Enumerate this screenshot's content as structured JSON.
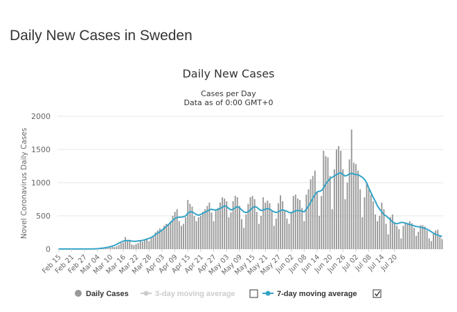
{
  "page": {
    "heading": "Daily New Cases in Sweden"
  },
  "colors": {
    "bar": "#999999",
    "line": "#33a3c7",
    "grid": "#e6e6e6",
    "text": "#333333",
    "disabled": "#cccccc"
  },
  "chart_data": {
    "type": "bar",
    "title": "Daily New Cases",
    "subtitle_line1": "Cases per Day",
    "subtitle_line2": "Data as of 0:00 GMT+0",
    "ylabel": "Novel Coronavirus Daily Cases",
    "ylim": [
      0,
      2000
    ],
    "yticks": [
      "0",
      "500",
      "1000",
      "1500",
      "2000"
    ],
    "ytick_values": [
      0,
      500,
      1000,
      1500,
      2000
    ],
    "start_date": "Feb 15",
    "xtick_labels": [
      "Feb 15",
      "Feb 21",
      "Feb 27",
      "Mar 04",
      "Mar 10",
      "Mar 16",
      "Mar 22",
      "Mar 28",
      "Apr 03",
      "Apr 09",
      "Apr 15",
      "Apr 21",
      "Apr 27",
      "May 03",
      "May 09",
      "May 15",
      "May 21",
      "May 27",
      "Jun 02",
      "Jun 08",
      "Jun 14",
      "Jun 20",
      "Jun 26",
      "Jul 02",
      "Jul 08",
      "Jul 14",
      "Jul 20"
    ],
    "xtick_step_days": 6,
    "series": [
      {
        "name": "Daily Cases",
        "type": "bar",
        "values": [
          1,
          0,
          0,
          0,
          0,
          0,
          0,
          0,
          0,
          0,
          0,
          0,
          0,
          1,
          1,
          2,
          2,
          4,
          6,
          10,
          12,
          15,
          20,
          18,
          25,
          35,
          30,
          40,
          60,
          90,
          100,
          180,
          130,
          140,
          70,
          60,
          75,
          90,
          120,
          110,
          130,
          160,
          120,
          180,
          190,
          250,
          280,
          310,
          290,
          350,
          380,
          370,
          420,
          500,
          560,
          600,
          420,
          350,
          380,
          480,
          740,
          680,
          640,
          500,
          420,
          480,
          500,
          560,
          600,
          650,
          700,
          550,
          420,
          590,
          620,
          700,
          780,
          760,
          720,
          480,
          550,
          720,
          800,
          780,
          650,
          450,
          320,
          520,
          680,
          780,
          800,
          750,
          560,
          380,
          500,
          780,
          700,
          730,
          690,
          580,
          350,
          460,
          690,
          810,
          720,
          580,
          460,
          380,
          560,
          800,
          820,
          760,
          740,
          620,
          420,
          820,
          900,
          1050,
          1100,
          1180,
          860,
          500,
          800,
          1480,
          1400,
          1380,
          1100,
          600,
          1200,
          1500,
          1550,
          1480,
          1200,
          750,
          1000,
          1350,
          1800,
          1300,
          1280,
          1180,
          900,
          480,
          780,
          1000,
          900,
          820,
          720,
          520,
          420,
          500,
          700,
          600,
          380,
          220,
          480,
          520,
          400,
          350,
          300,
          160,
          350,
          400,
          380,
          420,
          390,
          320,
          200,
          260,
          360,
          360,
          340,
          280,
          160,
          120,
          230,
          280,
          290,
          200,
          150
        ]
      },
      {
        "name": "3-day moving average",
        "type": "line",
        "visible": false,
        "values": []
      },
      {
        "name": "7-day moving average",
        "type": "line",
        "values": [
          1,
          1,
          1,
          1,
          1,
          1,
          1,
          1,
          1,
          1,
          1,
          1,
          1,
          1,
          1,
          1,
          2,
          3,
          5,
          8,
          12,
          16,
          22,
          28,
          35,
          45,
          55,
          70,
          90,
          105,
          120,
          125,
          128,
          125,
          120,
          118,
          118,
          122,
          126,
          130,
          140,
          150,
          160,
          175,
          195,
          220,
          240,
          260,
          285,
          310,
          340,
          370,
          400,
          430,
          460,
          475,
          480,
          480,
          485,
          500,
          540,
          560,
          560,
          540,
          520,
          510,
          520,
          540,
          555,
          570,
          590,
          600,
          590,
          590,
          595,
          610,
          630,
          650,
          640,
          610,
          590,
          600,
          620,
          640,
          620,
          590,
          560,
          550,
          560,
          590,
          620,
          640,
          630,
          600,
          580,
          590,
          600,
          610,
          600,
          580,
          560,
          550,
          560,
          580,
          590,
          580,
          570,
          550,
          545,
          560,
          575,
          580,
          580,
          570,
          560,
          600,
          650,
          700,
          760,
          820,
          860,
          870,
          880,
          920,
          980,
          1020,
          1060,
          1080,
          1100,
          1120,
          1140,
          1150,
          1120,
          1100,
          1110,
          1130,
          1140,
          1130,
          1120,
          1120,
          1100,
          1080,
          1050,
          1000,
          920,
          850,
          780,
          720,
          650,
          600,
          560,
          520,
          500,
          470,
          440,
          410,
          390,
          380,
          390,
          400,
          400,
          390,
          380,
          370,
          360,
          350,
          340,
          335,
          330,
          320,
          310,
          300,
          280,
          260,
          240,
          220,
          210,
          200,
          190
        ]
      }
    ],
    "legend": [
      {
        "label": "Daily Cases",
        "enabled": true
      },
      {
        "label": "3-day moving average",
        "enabled": false,
        "checked": false
      },
      {
        "label": "7-day moving average",
        "enabled": true,
        "checked": true
      }
    ],
    "legend_placement": "bottom-center"
  }
}
